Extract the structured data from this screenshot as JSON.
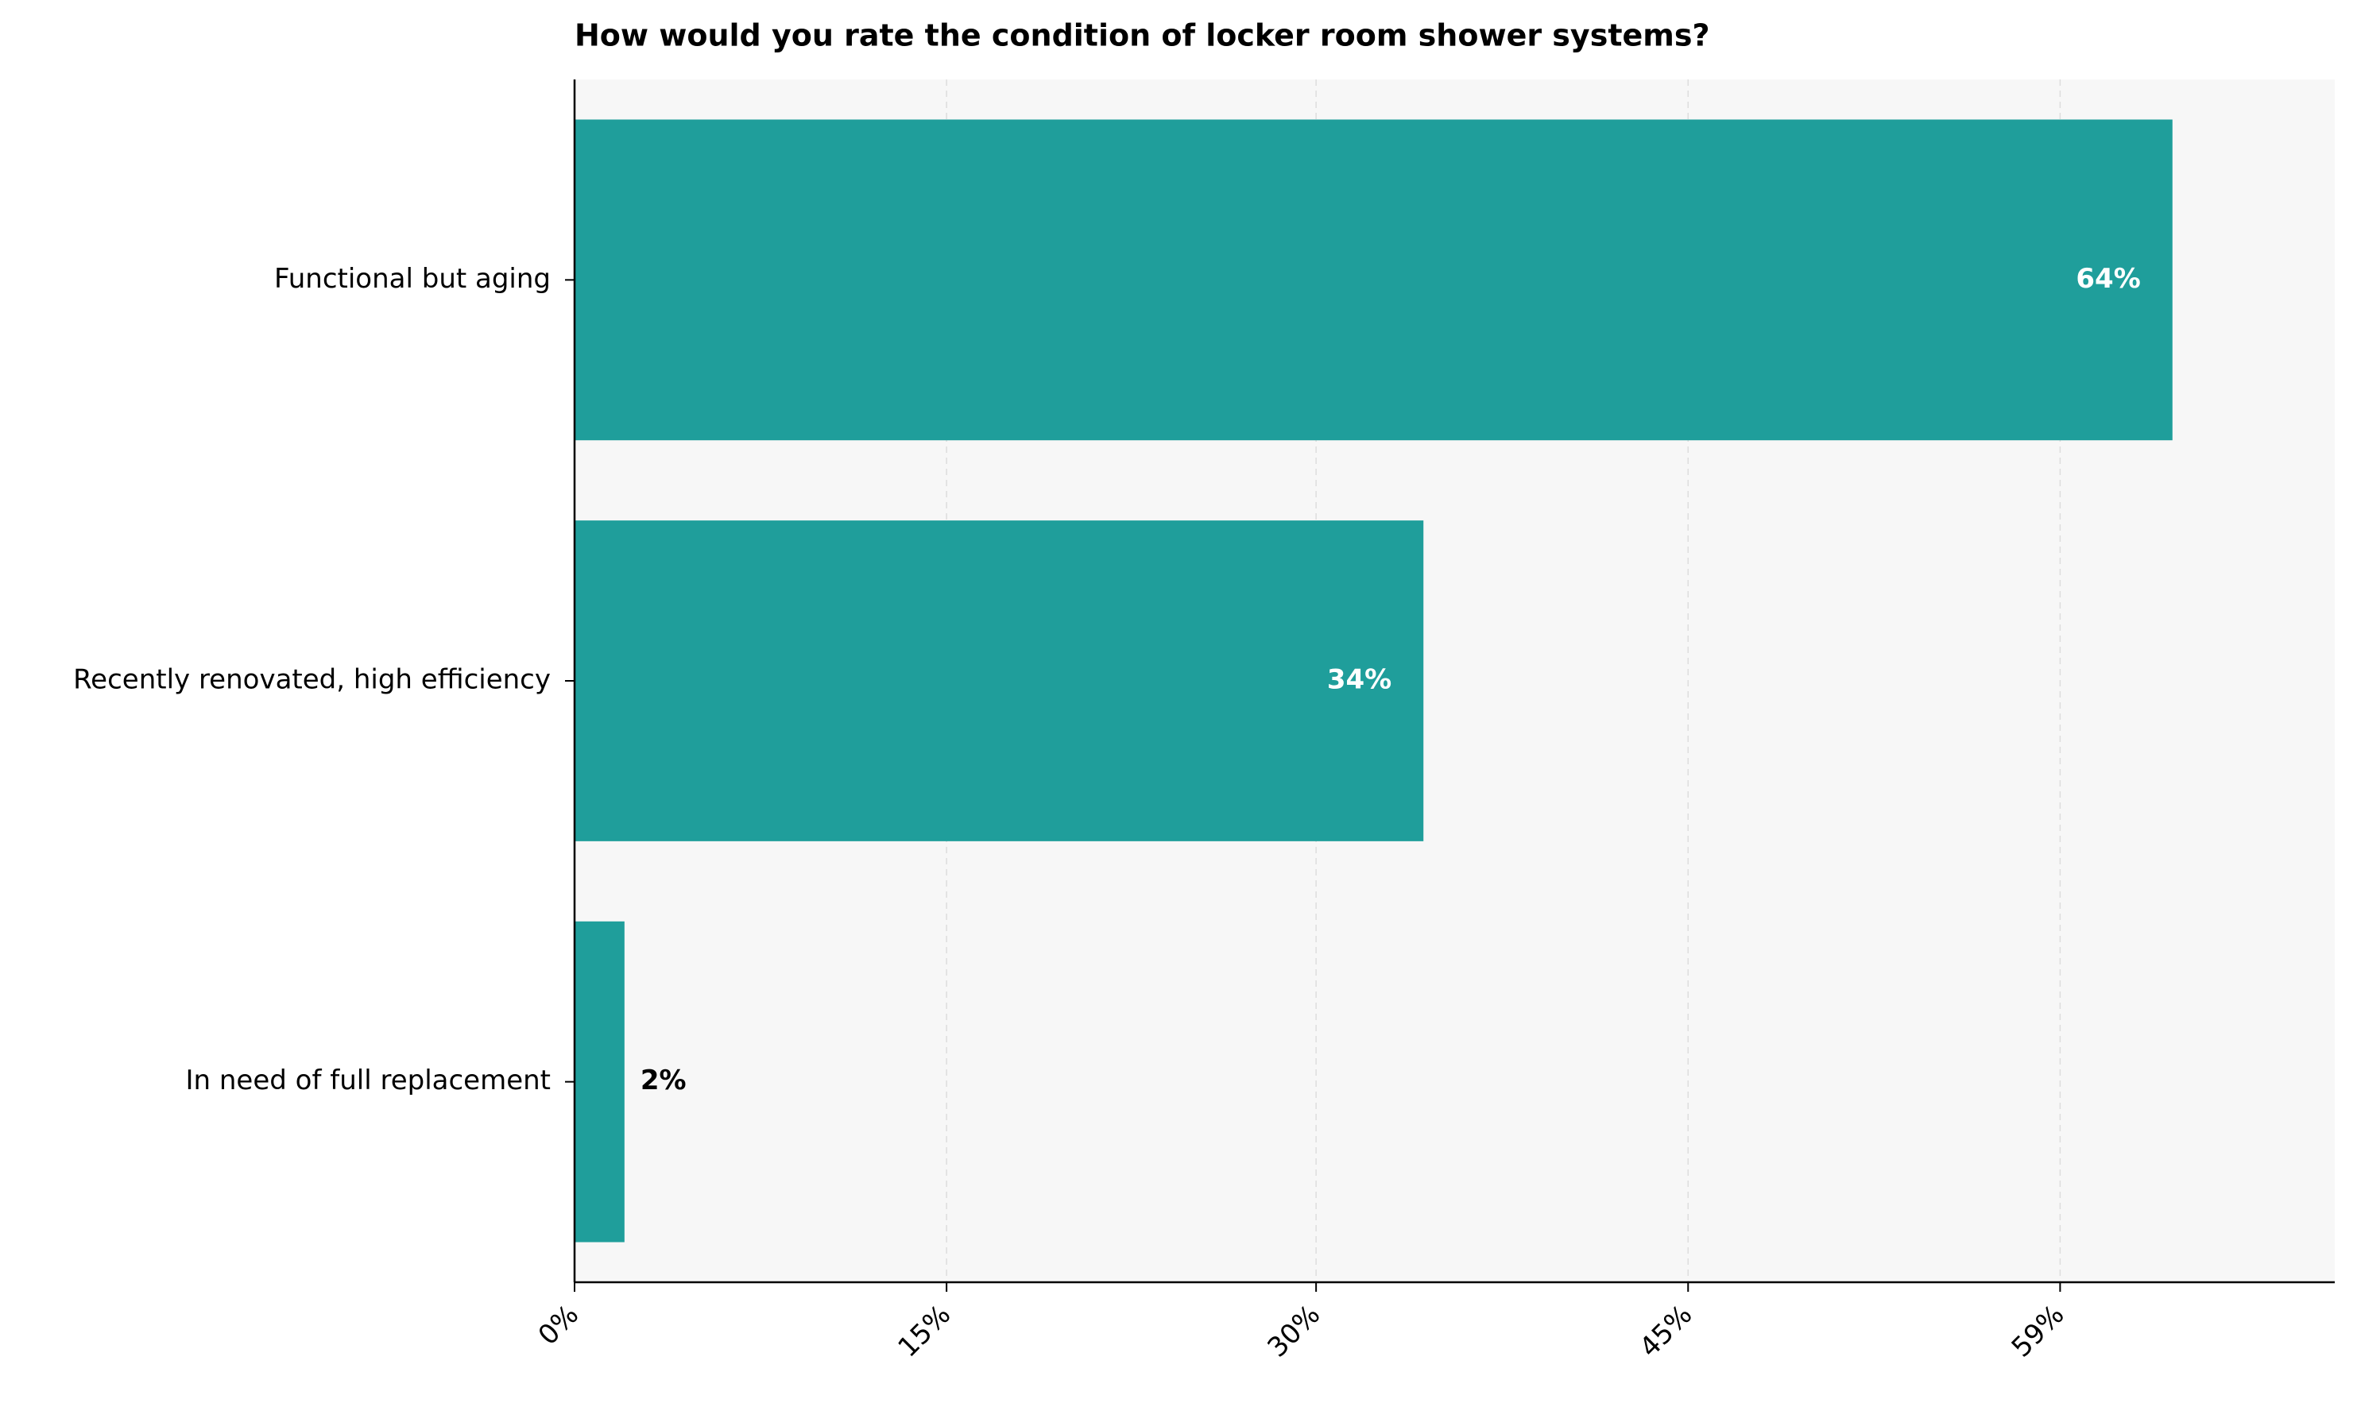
{
  "chart_data": {
    "type": "bar",
    "orientation": "horizontal",
    "title": "How would you rate the condition of locker room shower systems?",
    "categories": [
      "Functional but aging",
      "Recently renovated, high efficiency",
      "In need of full replacement"
    ],
    "values": [
      64,
      34,
      2
    ],
    "value_labels": [
      "64%",
      "34%",
      "2%"
    ],
    "color": "#1f9e9b",
    "xlim": [
      0,
      70.5
    ],
    "xticks": [
      {
        "value": 0,
        "label": "0%"
      },
      {
        "value": 14.9,
        "label": "15%"
      },
      {
        "value": 29.7,
        "label": "30%"
      },
      {
        "value": 44.6,
        "label": "45%"
      },
      {
        "value": 59.5,
        "label": "59%"
      }
    ],
    "grid": true
  }
}
